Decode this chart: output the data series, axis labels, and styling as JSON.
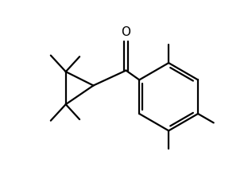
{
  "background_color": "#ffffff",
  "line_color": "#000000",
  "line_width": 1.6,
  "figsize": [
    3.17,
    2.15
  ],
  "dpi": 100,
  "xlim": [
    0.5,
    10.5
  ],
  "ylim": [
    1.0,
    7.5
  ]
}
